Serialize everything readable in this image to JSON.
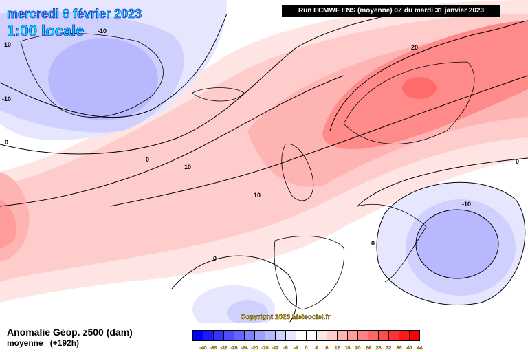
{
  "header": {
    "date": "mercredi 8 février 2023",
    "time": "1:00 locale",
    "run": "Run ECMWF ENS (moyenne) 0Z du mardi 31 janvier 2023"
  },
  "copyright": "Copyright 2023 Meteociel.fr",
  "footer": {
    "title": "Anomalie Géop. z500 (dam)",
    "subtitle": "moyenne",
    "lead": "(+192h)"
  },
  "legend": {
    "labels": [
      "-40",
      "-36",
      "-32",
      "-28",
      "-24",
      "-20",
      "-16",
      "-12",
      "-8",
      "-4",
      "0",
      "4",
      "8",
      "12",
      "16",
      "20",
      "24",
      "28",
      "32",
      "36",
      "40",
      "44"
    ],
    "colors": [
      "#0000ff",
      "#1a1aff",
      "#3333ff",
      "#4d4dff",
      "#6666ff",
      "#8080ff",
      "#9e9eff",
      "#b8b8ff",
      "#d0d0ff",
      "#e6e6ff",
      "#ffffff",
      "#ffffff",
      "#ffe4e4",
      "#ffcccc",
      "#ffb4b4",
      "#ff9c9c",
      "#ff8282",
      "#ff6666",
      "#ff4d4d",
      "#ff3333",
      "#ff1a1a",
      "#ff0000"
    ]
  },
  "contour_labels": {
    "a": "-10",
    "b": "-10",
    "c": "-10",
    "d": "0",
    "e": "0",
    "f": "10",
    "g": "10",
    "h": "20",
    "i": "0",
    "j": "-10",
    "k": "0",
    "l": "0"
  }
}
